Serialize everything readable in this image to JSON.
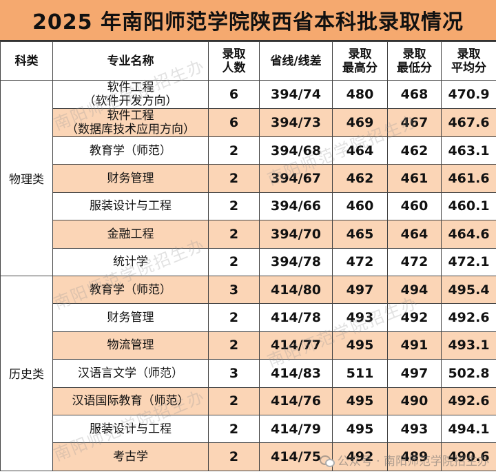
{
  "title": "2025 年南阳师范学院陕西省本科批录取情况",
  "headers": {
    "category": "科类",
    "major": "专业名称",
    "count_line1": "录取",
    "count_line2": "人数",
    "line_diff": "省线/线差",
    "max_line1": "录取",
    "max_line2": "最高分",
    "min_line1": "录取",
    "min_line2": "最低分",
    "avg_line1": "录取",
    "avg_line2": "平均分"
  },
  "groups": [
    {
      "category": "物理类",
      "rows": [
        {
          "major_line1": "软件工程",
          "major_line2": "（软件开发方向）",
          "count": "6",
          "line_diff": "394/74",
          "max": "480",
          "min": "468",
          "avg": "470.9"
        },
        {
          "major_line1": "软件工程",
          "major_line2": "（数据库技术应用方向）",
          "count": "6",
          "line_diff": "394/73",
          "max": "469",
          "min": "467",
          "avg": "467.6"
        },
        {
          "major_line1": "教育学（师范）",
          "major_line2": "",
          "count": "2",
          "line_diff": "394/68",
          "max": "464",
          "min": "462",
          "avg": "463.1"
        },
        {
          "major_line1": "财务管理",
          "major_line2": "",
          "count": "2",
          "line_diff": "394/67",
          "max": "462",
          "min": "461",
          "avg": "461.6"
        },
        {
          "major_line1": "服装设计与工程",
          "major_line2": "",
          "count": "2",
          "line_diff": "394/66",
          "max": "460",
          "min": "460",
          "avg": "460.1"
        },
        {
          "major_line1": "金融工程",
          "major_line2": "",
          "count": "2",
          "line_diff": "394/70",
          "max": "465",
          "min": "464",
          "avg": "464.6"
        },
        {
          "major_line1": "统计学",
          "major_line2": "",
          "count": "2",
          "line_diff": "394/78",
          "max": "472",
          "min": "472",
          "avg": "472.1"
        }
      ]
    },
    {
      "category": "历史类",
      "rows": [
        {
          "major_line1": "教育学（师范）",
          "major_line2": "",
          "count": "3",
          "line_diff": "414/80",
          "max": "497",
          "min": "494",
          "avg": "495.4"
        },
        {
          "major_line1": "财务管理",
          "major_line2": "",
          "count": "2",
          "line_diff": "414/78",
          "max": "493",
          "min": "492",
          "avg": "492.6"
        },
        {
          "major_line1": "物流管理",
          "major_line2": "",
          "count": "2",
          "line_diff": "414/77",
          "max": "495",
          "min": "491",
          "avg": "493.1"
        },
        {
          "major_line1": "汉语言文学（师范）",
          "major_line2": "",
          "count": "3",
          "line_diff": "414/83",
          "max": "511",
          "min": "497",
          "avg": "502.8"
        },
        {
          "major_line1": "汉语国际教育（师范）",
          "major_line2": "",
          "count": "2",
          "line_diff": "414/76",
          "max": "495",
          "min": "490",
          "avg": "492.6"
        },
        {
          "major_line1": "服装设计与工程",
          "major_line2": "",
          "count": "2",
          "line_diff": "414/79",
          "max": "495",
          "min": "493",
          "avg": "494.1"
        },
        {
          "major_line1": "考古学",
          "major_line2": "",
          "count": "2",
          "line_diff": "414/75",
          "max": "492",
          "min": "489",
          "avg": "490.6"
        }
      ]
    }
  ],
  "watermark_text": "南阳师范学院招生办",
  "footer_watermark": "公众号 · 南阳师范学院招生办",
  "colors": {
    "title_bg": "#f5a96f",
    "row_shade": "#fbd5b6"
  }
}
